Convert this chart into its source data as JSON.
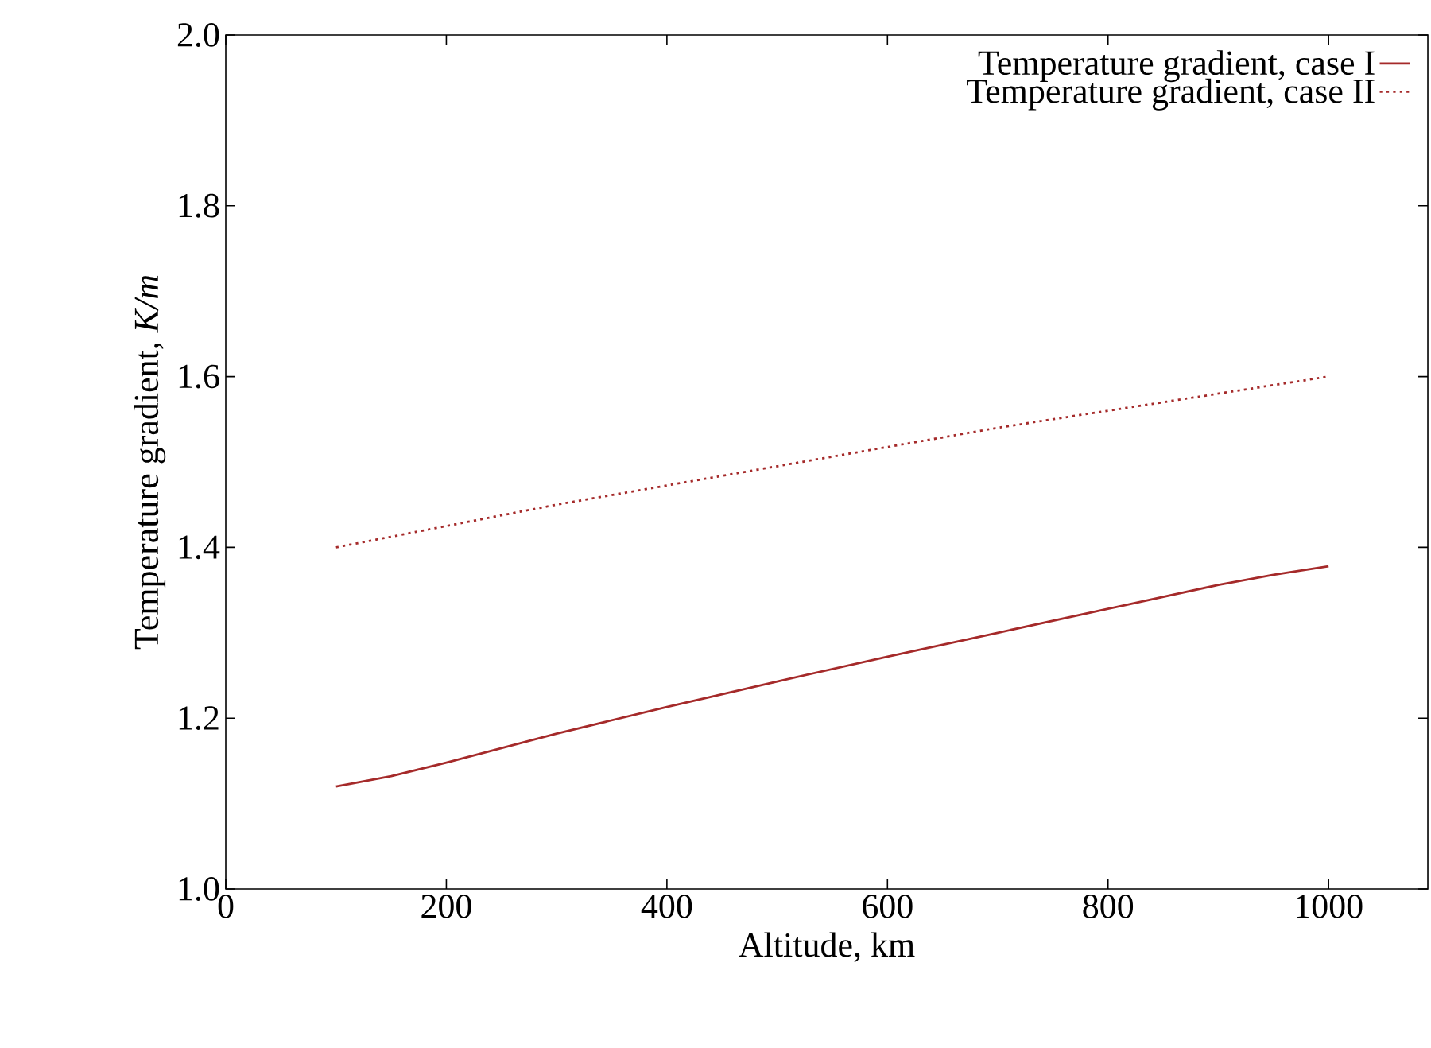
{
  "chart_data": {
    "type": "line",
    "xlabel": "Altitude, km",
    "ylabel": "Temperature gradient, *K/m*",
    "xlim": [
      0,
      1090
    ],
    "ylim": [
      1.0,
      2.0
    ],
    "xticks": [
      0,
      200,
      400,
      600,
      800,
      1000
    ],
    "yticks": [
      {
        "value": 1.0,
        "label": "1.0"
      },
      1.2,
      1.4,
      1.6,
      1.8,
      {
        "value": 2.0,
        "label": "2.0"
      }
    ],
    "legend": "top right",
    "grid": false,
    "marker": "none",
    "series": [
      {
        "name": "Temperature gradient, case I",
        "color": "#a52a2a",
        "line_style": "solid",
        "x": [
          100,
          150,
          200,
          300,
          400,
          500,
          600,
          700,
          800,
          900,
          950,
          1000
        ],
        "values": [
          1.12,
          1.132,
          1.148,
          1.182,
          1.213,
          1.243,
          1.272,
          1.3,
          1.328,
          1.356,
          1.368,
          1.378
        ]
      },
      {
        "name": "Temperature gradient, case II",
        "color": "#a52a2a",
        "line_style": "dotted",
        "x": [
          100,
          300,
          500,
          700,
          1000
        ],
        "values": [
          1.4,
          1.45,
          1.495,
          1.54,
          1.6
        ]
      }
    ]
  }
}
